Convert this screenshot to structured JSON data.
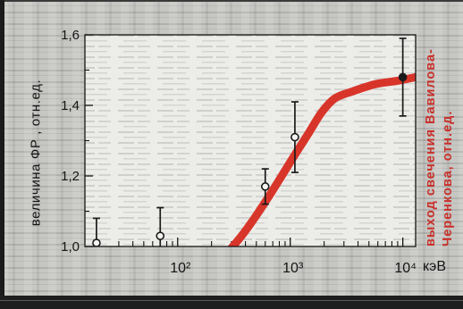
{
  "chart_data": {
    "type": "scatter",
    "xlabel": "кэВ",
    "ylabel": "величина ФР , отн.ед.",
    "y2label": [
      "выход свечения Вавилова-",
      "Черенкова, отн.ед."
    ],
    "x_scale": "log",
    "xlim": [
      15,
      13000
    ],
    "ylim": [
      1.0,
      1.6
    ],
    "grid": false,
    "x_ticks": [
      {
        "value": 100,
        "label": "10²"
      },
      {
        "value": 1000,
        "label": "10³"
      },
      {
        "value": 10000,
        "label": "10⁴"
      }
    ],
    "y_ticks": [
      {
        "value": 1.0,
        "label": "1,0"
      },
      {
        "value": 1.2,
        "label": "1,2"
      },
      {
        "value": 1.4,
        "label": "1,4"
      },
      {
        "value": 1.6,
        "label": "1,6"
      }
    ],
    "series": [
      {
        "type": "scatter",
        "x": [
          19,
          70,
          600,
          1100,
          10000
        ],
        "y": [
          1.01,
          1.03,
          1.17,
          1.31,
          1.48
        ],
        "yerr": [
          0.07,
          0.08,
          0.05,
          0.1,
          0.11
        ],
        "markers": [
          "open",
          "open",
          "open",
          "open",
          "filled"
        ]
      },
      {
        "type": "line",
        "x": [
          290,
          370,
          480,
          640,
          840,
          1100,
          1450,
          1900,
          2500,
          3600,
          5700,
          9000,
          13000
        ],
        "y": [
          0.99,
          1.03,
          1.08,
          1.14,
          1.2,
          1.26,
          1.32,
          1.38,
          1.42,
          1.44,
          1.46,
          1.47,
          1.48
        ]
      }
    ],
    "colors": {
      "points": "#1a1a1a",
      "curve": "#d8352a",
      "y2label": "#c9302a",
      "axes": "#141414"
    }
  }
}
